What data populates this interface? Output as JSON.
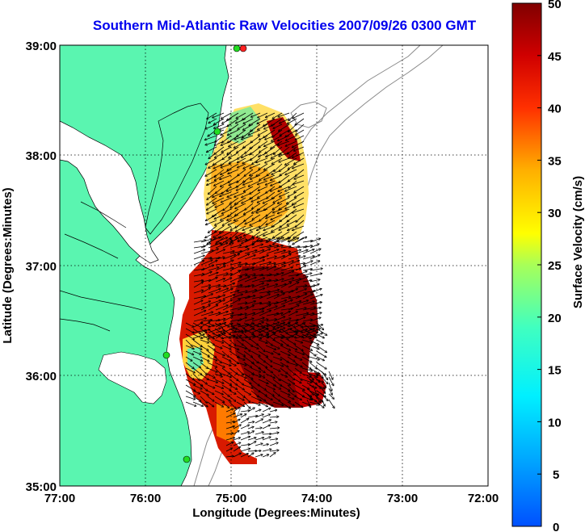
{
  "title": "Southern Mid-Atlantic Raw Velocities 2007/09/26 0300 GMT",
  "axes": {
    "xlabel": "Longitude (Degrees:Minutes)",
    "ylabel": "Latitude (Degrees:Minutes)",
    "x_ticks": [
      "77:00",
      "76:00",
      "75:00",
      "74:00",
      "73:00",
      "72:00"
    ],
    "y_ticks": [
      "39:00",
      "38:00",
      "37:00",
      "36:00",
      "35:00"
    ],
    "xlim": [
      -77,
      -72
    ],
    "ylim": [
      35,
      39
    ],
    "grid": true
  },
  "colorbar": {
    "label": "Surface Velocity (cm/s)",
    "ticks": [
      "50",
      "45",
      "40",
      "35",
      "30",
      "25",
      "20",
      "15",
      "10",
      "5",
      "0"
    ],
    "range": [
      0,
      50
    ]
  },
  "colors": {
    "land": "#5af5b0",
    "water": "#ffffff",
    "title": "#0000ee",
    "station_dot": "#22dd22",
    "station_dot_alt": "#ff2222"
  }
}
